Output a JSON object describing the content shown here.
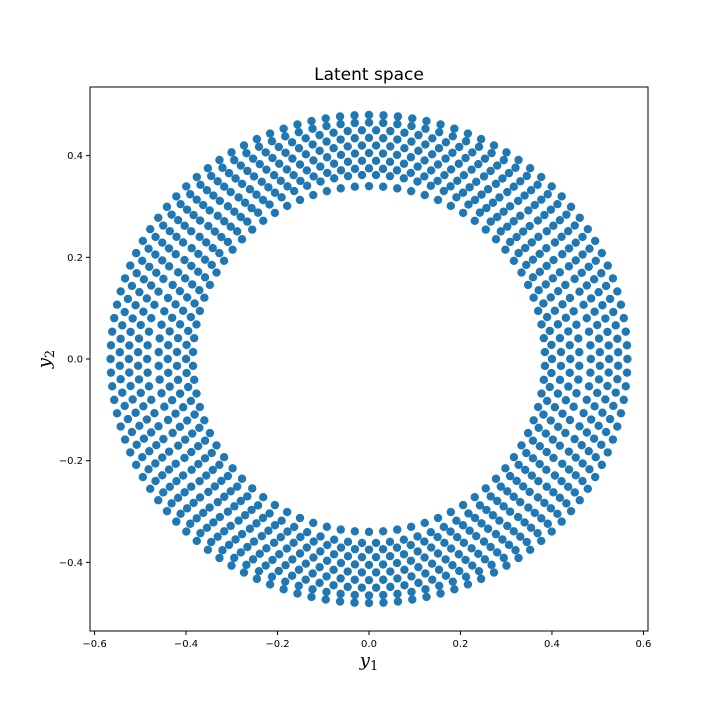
{
  "chart_data": {
    "type": "scatter",
    "title": "Latent space",
    "xlabel": {
      "base": "y",
      "sub": "1"
    },
    "ylabel": {
      "base": "y",
      "sub": "2"
    },
    "xlim": [
      -0.61,
      0.61
    ],
    "ylim": [
      -0.535,
      0.535
    ],
    "xticks": [
      -0.6,
      -0.4,
      -0.2,
      0.0,
      0.2,
      0.4,
      0.6
    ],
    "xtick_labels": [
      "−0.6",
      "−0.4",
      "−0.2",
      "0.0",
      "0.2",
      "0.4",
      "0.6"
    ],
    "yticks": [
      -0.4,
      -0.2,
      0.0,
      0.2,
      0.4
    ],
    "ytick_labels": [
      "−0.4",
      "−0.2",
      "0.0",
      "0.2",
      "0.4"
    ],
    "grid": false,
    "marker_color": "#1f77b4",
    "series": [
      {
        "points_by_ring": [
          {
            "radius_x": 0.565,
            "radius_y": 0.48,
            "count": 112
          },
          {
            "radius_x": 0.545,
            "radius_y": 0.465,
            "count": 110
          },
          {
            "radius_x": 0.525,
            "radius_y": 0.45,
            "count": 106
          },
          {
            "radius_x": 0.505,
            "radius_y": 0.435,
            "count": 102
          },
          {
            "radius_x": 0.485,
            "radius_y": 0.42,
            "count": 98
          },
          {
            "radius_x": 0.46,
            "radius_y": 0.405,
            "count": 94
          },
          {
            "radius_x": 0.44,
            "radius_y": 0.39,
            "count": 90
          },
          {
            "radius_x": 0.42,
            "radius_y": 0.375,
            "count": 86
          },
          {
            "radius_x": 0.4,
            "radius_y": 0.362,
            "count": 82
          },
          {
            "radius_x": 0.385,
            "radius_y": 0.34,
            "count": 78
          }
        ]
      }
    ]
  }
}
